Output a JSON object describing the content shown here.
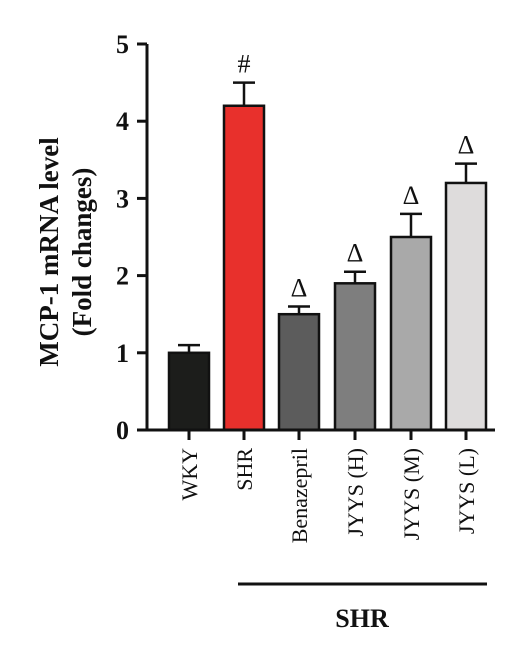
{
  "chart_data": {
    "type": "bar",
    "ylabel_line1": "MCP-1 mRNA level",
    "ylabel_line2": "(Fold changes)",
    "xlabel": "",
    "ylim": [
      0,
      5
    ],
    "yticks": [
      "0",
      "1",
      "2",
      "3",
      "4",
      "5"
    ],
    "categories": [
      "WKY",
      "SHR",
      "Benazepril",
      "JYYS (H)",
      "JYYS (M)",
      "JYYS (L)"
    ],
    "values": [
      1.0,
      4.2,
      1.5,
      1.9,
      2.5,
      3.2
    ],
    "errors": [
      0.1,
      0.3,
      0.1,
      0.15,
      0.3,
      0.25
    ],
    "markers": [
      "",
      "#",
      "Δ",
      "Δ",
      "Δ",
      "Δ"
    ],
    "colors": [
      "#1c1d1b",
      "#e8302c",
      "#5c5c5c",
      "#7e7e7e",
      "#a9a9a9",
      "#dedcdc"
    ],
    "group_label": "SHR",
    "legend": false,
    "grid": false
  }
}
